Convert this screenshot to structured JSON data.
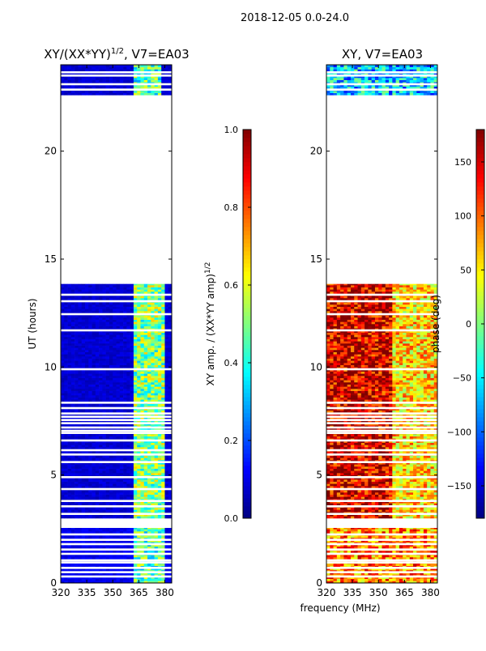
{
  "chart_data": {
    "suptitle": "2018-12-05 0.0-24.0",
    "shared_xlabel": "frequency (MHz)",
    "panels": [
      {
        "type": "heatmap",
        "title": "XY/(XX*YY)",
        "title_exponent": "1/2",
        "title_suffix": ", V7=EA03",
        "ylabel": "UT (hours)",
        "xlim": [
          320,
          384
        ],
        "ylim": [
          0,
          24
        ],
        "xticks": [
          320,
          335,
          350,
          365,
          380
        ],
        "yticks": [
          0,
          5,
          10,
          15,
          20
        ],
        "colormap": "jet",
        "colorbar": {
          "label": "XY amp. / (XX*YY amp)",
          "label_exponent": "1/2",
          "range": [
            0.0,
            1.0
          ],
          "ticks": [
            "0.0",
            "0.2",
            "0.4",
            "0.6",
            "0.8",
            "1.0"
          ]
        },
        "data_blocks": [
          {
            "ut_start": 0.0,
            "ut_end": 2.55,
            "level": 0.08,
            "hot_band_mhz": [
              362,
              380
            ],
            "hot_level": 0.45
          },
          {
            "ut_start": 3.0,
            "ut_end": 13.85,
            "level": 0.05,
            "hot_band_mhz": [
              362,
              380
            ],
            "hot_level": 0.5
          },
          {
            "ut_start": 22.6,
            "ut_end": 24.0,
            "level": 0.05,
            "hot_band_mhz": [
              362,
              378
            ],
            "hot_level": 0.45
          }
        ]
      },
      {
        "type": "heatmap",
        "title": "XY, V7=EA03",
        "xlim": [
          320,
          384
        ],
        "ylim": [
          0,
          24
        ],
        "xticks": [
          320,
          335,
          350,
          365,
          380
        ],
        "yticks": [
          0,
          5,
          10,
          15,
          20
        ],
        "colormap": "jet",
        "colorbar": {
          "label": "phase (deg)",
          "range": [
            -180,
            180
          ],
          "ticks": [
            "150",
            "100",
            "50",
            "0",
            "−50",
            "−100",
            "−150"
          ]
        },
        "data_blocks": [
          {
            "ut_start": 0.0,
            "ut_end": 2.55,
            "phase_deg": 90
          },
          {
            "ut_start": 3.0,
            "ut_end": 13.85,
            "phase_deg": 150
          },
          {
            "ut_start": 22.6,
            "ut_end": 24.0,
            "phase_deg": -60
          }
        ]
      }
    ],
    "gap_rows_ut": [
      0.3,
      0.5,
      0.7,
      0.95,
      1.05,
      1.35,
      1.55,
      1.8,
      2.0,
      2.25,
      3.2,
      3.55,
      3.8,
      4.35,
      4.9,
      5.6,
      5.95,
      6.15,
      6.6,
      6.95,
      7.05,
      7.2,
      7.4,
      7.55,
      7.7,
      7.85,
      8.1,
      8.35,
      9.9,
      11.7,
      12.45,
      13.05,
      13.35,
      22.85,
      23.1,
      23.5,
      23.65
    ]
  }
}
